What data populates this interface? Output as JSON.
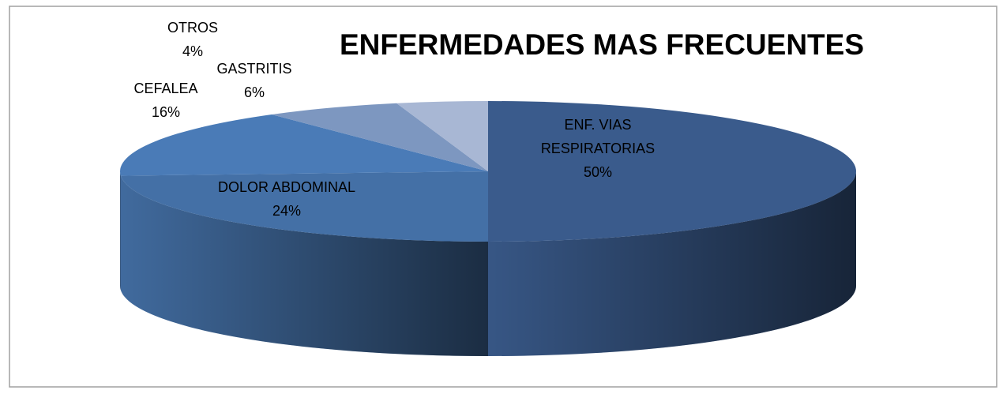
{
  "chart_data": {
    "type": "pie3d",
    "title": "ENFERMEDADES  MAS FRECUENTES",
    "categories": [
      "ENF. VIAS RESPIRATORIAS",
      "DOLOR ABDOMINAL",
      "CEFALEA",
      "GASTRITIS",
      "OTROS"
    ],
    "values": [
      50,
      24,
      16,
      6,
      4
    ],
    "value_labels": [
      "50%",
      "24%",
      "16%",
      "6%",
      "4%"
    ],
    "colors": [
      "#3a5b8c",
      "#4470a6",
      "#4a7bb7",
      "#7d97c0",
      "#a8b7d4"
    ]
  }
}
